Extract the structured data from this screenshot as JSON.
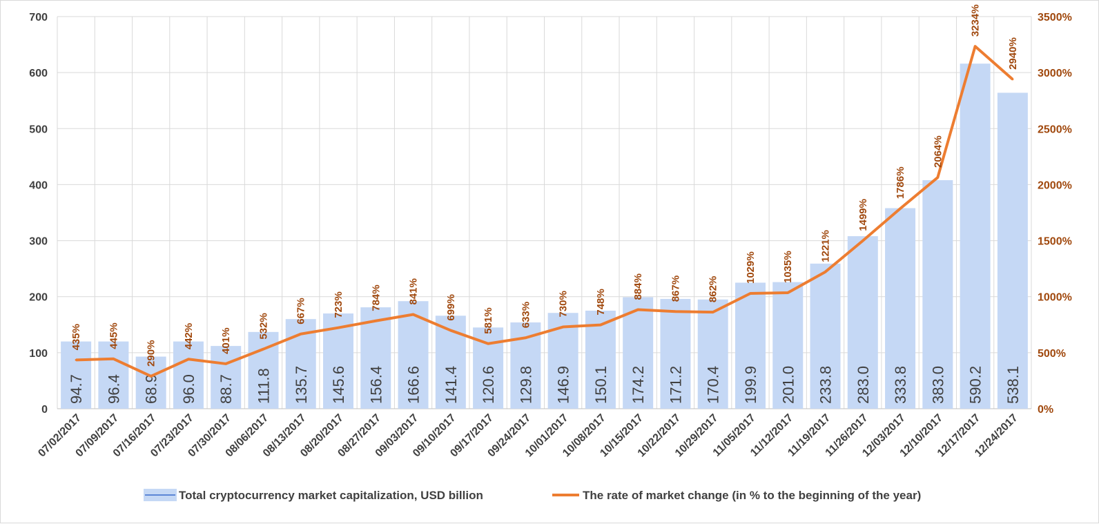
{
  "chart_data": {
    "type": "bar",
    "categories": [
      "07/02/2017",
      "07/09/2017",
      "07/16/2017",
      "07/23/2017",
      "07/30/2017",
      "08/06/2017",
      "08/13/2017",
      "08/20/2017",
      "08/27/2017",
      "09/03/2017",
      "09/10/2017",
      "09/17/2017",
      "09/24/2017",
      "10/01/2017",
      "10/08/2017",
      "10/15/2017",
      "10/22/2017",
      "10/29/2017",
      "11/05/2017",
      "11/12/2017",
      "11/19/2017",
      "11/26/2017",
      "12/03/2017",
      "12/10/2017",
      "12/17/2017",
      "12/24/2017"
    ],
    "series": [
      {
        "name": "Total cryptocurrency market capitalization, USD billion",
        "type": "bar",
        "axis": "left",
        "color": "#c5d8f5",
        "values": [
          94.7,
          96.4,
          68.9,
          96.0,
          88.7,
          111.8,
          135.7,
          145.6,
          156.4,
          166.6,
          141.4,
          120.6,
          129.8,
          146.9,
          150.1,
          174.2,
          171.2,
          170.4,
          199.9,
          201.0,
          233.8,
          283.0,
          333.8,
          383.0,
          590.2,
          538.1
        ],
        "bar_tops": [
          120,
          120,
          93,
          120,
          112,
          137,
          160,
          170,
          181,
          192,
          166,
          145,
          154,
          171,
          175,
          199,
          196,
          195,
          225,
          226,
          259,
          308,
          358,
          408,
          616,
          564
        ],
        "labels": [
          "94.7",
          "96.4",
          "68.9",
          "96.0",
          "88.7",
          "111.8",
          "135.7",
          "145.6",
          "156.4",
          "166.6",
          "141.4",
          "120.6",
          "129.8",
          "146.9",
          "150.1",
          "174.2",
          "171.2",
          "170.4",
          "199.9",
          "201.0",
          "233.8",
          "283.0",
          "333.8",
          "383.0",
          "590.2",
          "538.1"
        ]
      },
      {
        "name": "The rate of market change (in % to the beginning of the year)",
        "type": "line",
        "axis": "right",
        "color": "#ed7d31",
        "values": [
          435,
          445,
          290,
          442,
          401,
          532,
          667,
          723,
          784,
          841,
          699,
          581,
          633,
          730,
          748,
          884,
          867,
          862,
          1029,
          1035,
          1221,
          1499,
          1786,
          2064,
          3234,
          2940
        ],
        "labels": [
          "435%",
          "445%",
          "290%",
          "442%",
          "401%",
          "532%",
          "667%",
          "723%",
          "784%",
          "841%",
          "699%",
          "581%",
          "633%",
          "730%",
          "748%",
          "884%",
          "867%",
          "862%",
          "1029%",
          "1035%",
          "1221%",
          "1499%",
          "1786%",
          "2064%",
          "3234%",
          "2940%"
        ]
      }
    ],
    "y_left": {
      "min": 0,
      "max": 700,
      "ticks": [
        "0",
        "100",
        "200",
        "300",
        "400",
        "500",
        "600",
        "700"
      ]
    },
    "y_right": {
      "min": 0,
      "max": 3500,
      "ticks": [
        "0%",
        "500%",
        "1000%",
        "1500%",
        "2000%",
        "2500%",
        "3000%",
        "3500%"
      ]
    },
    "title": "",
    "xlabel": "",
    "ylabel": "",
    "grid": true,
    "legend_position": "bottom",
    "colors": {
      "bar": "#c5d8f5",
      "bar_legend": "#b4c7e7",
      "line": "#ed7d31",
      "right_axis_text": "#a0480d",
      "text": "#404040",
      "grid": "#d9d9d9"
    }
  }
}
